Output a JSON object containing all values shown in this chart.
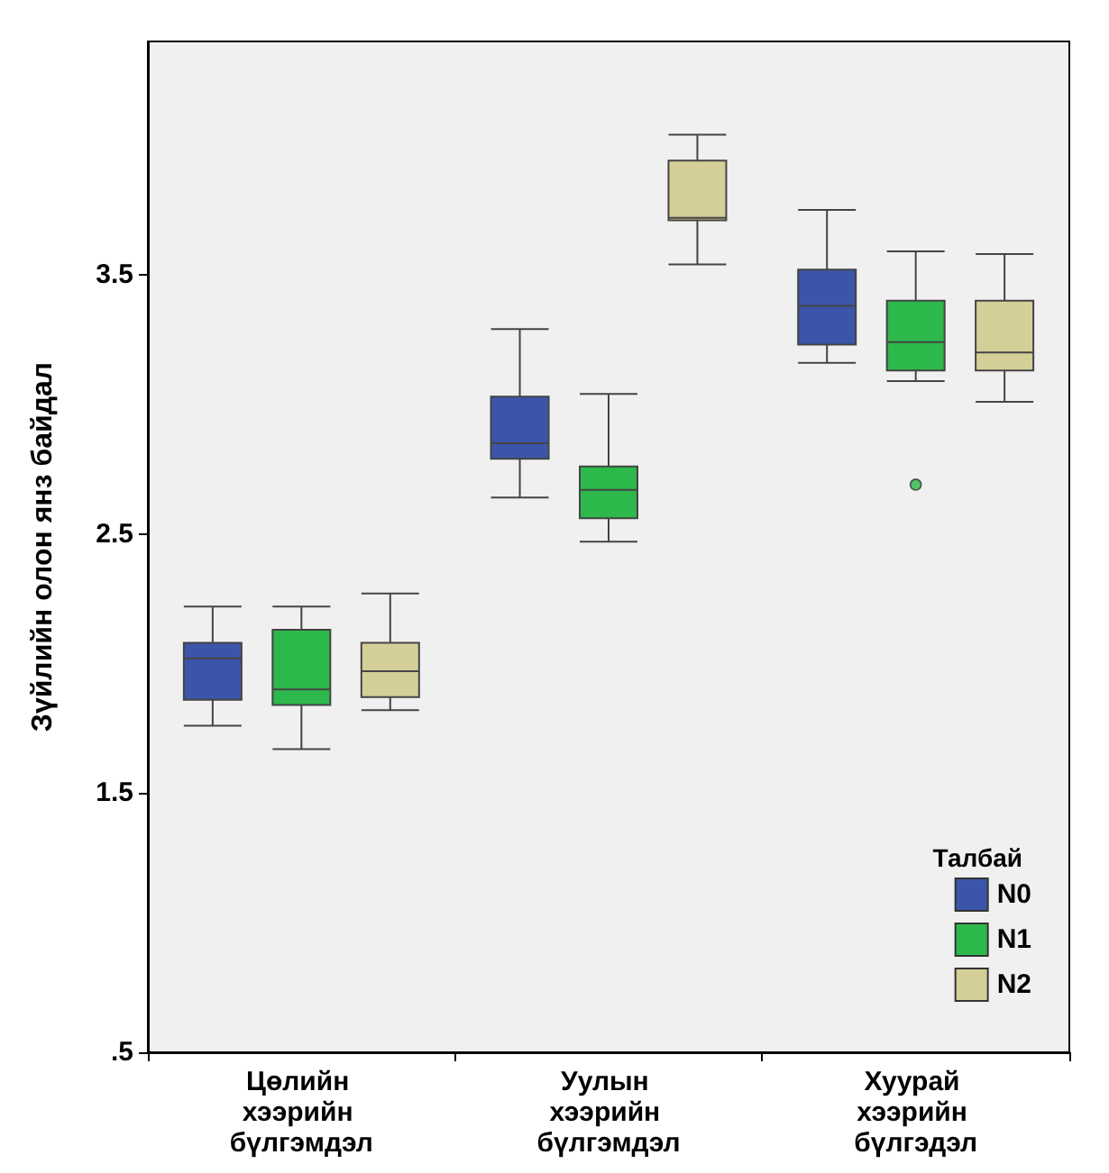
{
  "chart_data": {
    "type": "box",
    "ylabel": "Зүйлийн олон янз байдал",
    "legend_title": "Талбай",
    "legend": "bottom right",
    "grid": false,
    "categories": [
      "Цөлийн хээрийн бүлгэмдэл",
      "Уулын хээрийн бүлгэмдэл",
      "Хуурай хээрийн бүлгэдэл"
    ],
    "ylim": [
      0.5,
      4.4
    ],
    "yticks": [
      {
        "value": 0.5,
        "label": ".5"
      },
      {
        "value": 1.5,
        "label": "1.5"
      },
      {
        "value": 2.5,
        "label": "2.5"
      },
      {
        "value": 3.5,
        "label": "3.5"
      }
    ],
    "series": [
      {
        "name": "N0",
        "color": "#3b56a8",
        "boxes": [
          {
            "low": 1.76,
            "q1": 1.86,
            "median": 2.02,
            "q3": 2.08,
            "high": 2.22
          },
          {
            "low": 2.64,
            "q1": 2.79,
            "median": 2.85,
            "q3": 3.03,
            "high": 3.29
          },
          {
            "low": 3.16,
            "q1": 3.23,
            "median": 3.38,
            "q3": 3.52,
            "high": 3.75
          }
        ]
      },
      {
        "name": "N1",
        "color": "#2cb84a",
        "boxes": [
          {
            "low": 1.67,
            "q1": 1.84,
            "median": 1.9,
            "q3": 2.13,
            "high": 2.22
          },
          {
            "low": 2.47,
            "q1": 2.56,
            "median": 2.67,
            "q3": 2.76,
            "high": 3.04
          },
          {
            "low": 3.09,
            "q1": 3.13,
            "median": 3.24,
            "q3": 3.4,
            "high": 3.59,
            "outliers": [
              2.69
            ]
          }
        ]
      },
      {
        "name": "N2",
        "color": "#d4cf98",
        "boxes": [
          {
            "low": 1.82,
            "q1": 1.87,
            "median": 1.97,
            "q3": 2.08,
            "high": 2.27
          },
          {
            "low": 3.54,
            "q1": 3.71,
            "median": 3.72,
            "q3": 3.94,
            "high": 4.04
          },
          {
            "low": 3.01,
            "q1": 3.13,
            "median": 3.2,
            "q3": 3.4,
            "high": 3.58
          }
        ]
      }
    ]
  }
}
